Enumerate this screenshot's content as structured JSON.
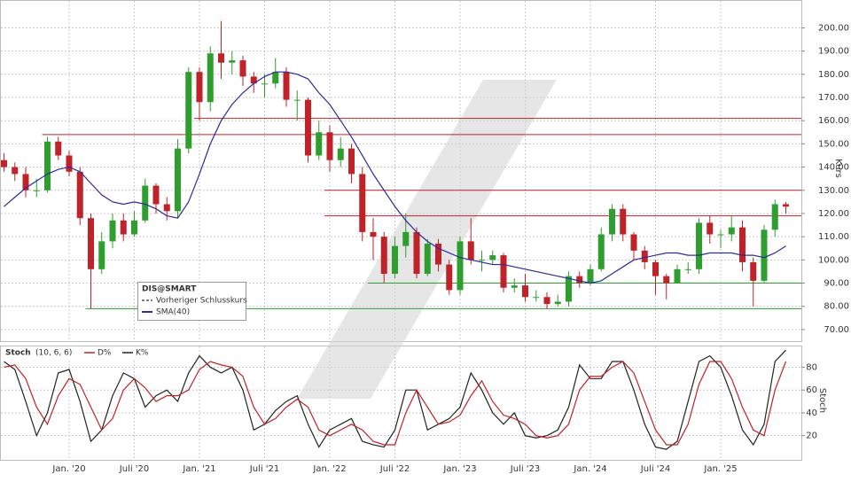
{
  "chart_data": [
    {
      "type": "candlestick",
      "name": "DIS@SMART",
      "categories": [
        null,
        null,
        null,
        null,
        null,
        null,
        "Jan. '20",
        null,
        null,
        null,
        null,
        null,
        "Juli '20",
        null,
        null,
        null,
        null,
        null,
        "Jan. '21",
        null,
        null,
        null,
        null,
        null,
        "Juli '21",
        null,
        null,
        null,
        null,
        null,
        "Jan. '22",
        null,
        null,
        null,
        null,
        null,
        "Juli '22",
        null,
        null,
        null,
        null,
        null,
        "Jan. '23",
        null,
        null,
        null,
        null,
        null,
        "Juli '23",
        null,
        null,
        null,
        null,
        null,
        "Jan. '24",
        null,
        null,
        null,
        null,
        null,
        "Juli '24",
        null,
        null,
        null,
        null,
        null,
        "Jan. '25",
        null,
        null,
        null,
        null,
        null,
        null
      ],
      "open": [
        143,
        140,
        137,
        130,
        130,
        151,
        145,
        138,
        118,
        96,
        108,
        117,
        111,
        117,
        132,
        124,
        121,
        148,
        181,
        168,
        189,
        185,
        186,
        179,
        176,
        176,
        181,
        169,
        169,
        145,
        155,
        143,
        148,
        137,
        112,
        110,
        94,
        106,
        112,
        94,
        107,
        98,
        87,
        108,
        100,
        100,
        102,
        88,
        89,
        84,
        84,
        81,
        82,
        93,
        90,
        96,
        111,
        122,
        111,
        104,
        99,
        93,
        90,
        96,
        96,
        116,
        111,
        111,
        114,
        99,
        91,
        113,
        124
      ],
      "high": [
        146,
        142,
        140,
        135,
        153,
        153,
        147,
        140,
        120,
        112,
        120,
        120,
        121,
        135,
        133,
        127,
        152,
        183,
        183,
        192,
        203,
        190,
        188,
        181,
        180,
        187,
        183,
        173,
        170,
        160,
        158,
        153,
        150,
        140,
        118,
        112,
        110,
        120,
        114,
        109,
        109,
        100,
        110,
        118,
        104,
        104,
        103,
        92,
        94,
        87,
        86,
        85,
        95,
        95,
        98,
        114,
        124,
        124,
        112,
        106,
        100,
        94,
        98,
        99,
        118,
        119,
        113,
        119,
        117,
        101,
        115,
        126,
        125
      ],
      "low": [
        138,
        134,
        127,
        127,
        129,
        143,
        136,
        115,
        79,
        94,
        105,
        108,
        110,
        116,
        120,
        117,
        118,
        146,
        160,
        164,
        178,
        180,
        175,
        172,
        170,
        174,
        166,
        160,
        142,
        143,
        138,
        140,
        133,
        108,
        100,
        90,
        92,
        101,
        92,
        93,
        95,
        85,
        85,
        98,
        95,
        98,
        86,
        86,
        82,
        82,
        79,
        80,
        80,
        88,
        89,
        95,
        108,
        108,
        100,
        96,
        85,
        83,
        90,
        94,
        94,
        107,
        105,
        108,
        95,
        80,
        90,
        110,
        120
      ],
      "close": [
        140,
        137,
        130,
        130,
        151,
        145,
        138,
        118,
        96,
        108,
        117,
        111,
        117,
        132,
        124,
        121,
        148,
        181,
        168,
        189,
        185,
        186,
        179,
        176,
        176,
        181,
        169,
        169,
        145,
        155,
        143,
        148,
        137,
        112,
        110,
        94,
        106,
        112,
        94,
        107,
        98,
        87,
        108,
        100,
        100,
        102,
        88,
        89,
        84,
        84,
        81,
        82,
        93,
        90,
        96,
        111,
        122,
        111,
        104,
        99,
        93,
        90,
        96,
        96,
        116,
        111,
        111,
        114,
        99,
        91,
        113,
        124,
        123
      ],
      "up_color": "#2e9e2e",
      "down_color": "#c0222a",
      "series": [
        {
          "name": "Vorheriger Schlusskurs",
          "color": "#555555",
          "dash": true
        },
        {
          "name": "SMA(40)",
          "color": "#2b2b9b",
          "values": [
            123,
            127,
            131,
            134,
            137,
            139,
            140,
            138,
            133,
            128,
            125,
            124,
            125,
            124,
            122,
            119,
            118,
            125,
            137,
            150,
            160,
            167,
            172,
            176,
            179,
            181,
            181,
            180,
            178,
            172,
            167,
            160,
            153,
            145,
            137,
            130,
            123,
            117,
            112,
            108,
            105,
            103,
            101,
            100,
            99,
            98,
            98,
            97,
            96,
            95,
            94,
            93,
            92,
            91,
            90,
            91,
            94,
            97,
            100,
            101,
            102,
            103,
            103,
            102,
            102,
            103,
            103,
            103,
            102,
            102,
            101,
            103,
            106
          ]
        }
      ],
      "hlines": [
        {
          "value": 161,
          "color": "#c0222a",
          "start": 18
        },
        {
          "value": 154,
          "color": "#c0222a",
          "start": 4
        },
        {
          "value": 130,
          "color": "#c0222a",
          "start": 30
        },
        {
          "value": 119,
          "color": "#c0222a",
          "start": 30
        },
        {
          "value": 90,
          "color": "#2e9e2e",
          "start": 34
        },
        {
          "value": 79,
          "color": "#2e9e2e",
          "start": 8
        }
      ],
      "ylabel": "Kurs",
      "ylim": [
        65,
        212
      ],
      "yticks": [
        {
          "value": 70,
          "label": "70.00"
        },
        {
          "value": 80,
          "label": "80.00"
        },
        {
          "value": 90,
          "label": "90.00"
        },
        {
          "value": 100,
          "label": "100.00"
        },
        {
          "value": 110,
          "label": "110.00"
        },
        {
          "value": 120,
          "label": "120.00"
        },
        {
          "value": 130,
          "label": "130.00"
        },
        {
          "value": 140,
          "label": "140.00"
        },
        {
          "value": 150,
          "label": "150.00"
        },
        {
          "value": 160,
          "label": "160.00"
        },
        {
          "value": 170,
          "label": "170.00"
        },
        {
          "value": 180,
          "label": "180.00"
        },
        {
          "value": 190,
          "label": "190.00"
        },
        {
          "value": 200,
          "label": "200.00"
        }
      ],
      "grid": true
    },
    {
      "type": "line",
      "title": "Stoch",
      "subtitle": "(10, 6, 6)",
      "ylabel": "Stoch",
      "series": [
        {
          "name": "D%",
          "color": "#c0222a",
          "values": [
            80,
            82,
            70,
            45,
            30,
            55,
            70,
            65,
            45,
            25,
            35,
            60,
            70,
            62,
            50,
            55,
            55,
            60,
            78,
            85,
            82,
            80,
            72,
            45,
            30,
            35,
            45,
            52,
            45,
            25,
            20,
            25,
            30,
            25,
            15,
            12,
            12,
            40,
            60,
            45,
            30,
            32,
            38,
            55,
            68,
            50,
            38,
            35,
            30,
            20,
            18,
            20,
            30,
            60,
            72,
            72,
            80,
            85,
            75,
            50,
            25,
            12,
            12,
            30,
            65,
            85,
            85,
            70,
            45,
            25,
            20,
            60,
            85
          ]
        },
        {
          "name": "K%",
          "color": "#222222",
          "values": [
            85,
            78,
            50,
            20,
            40,
            75,
            78,
            50,
            15,
            25,
            55,
            75,
            70,
            45,
            55,
            60,
            50,
            75,
            90,
            80,
            75,
            80,
            60,
            25,
            30,
            42,
            50,
            55,
            30,
            10,
            25,
            30,
            35,
            15,
            12,
            10,
            25,
            60,
            60,
            25,
            30,
            35,
            45,
            75,
            60,
            40,
            30,
            40,
            20,
            18,
            20,
            25,
            45,
            82,
            70,
            70,
            85,
            85,
            60,
            30,
            10,
            8,
            15,
            50,
            85,
            90,
            80,
            55,
            25,
            12,
            30,
            85,
            95
          ]
        }
      ],
      "ylim": [
        -2,
        99
      ],
      "yticks": [
        20,
        40,
        60,
        80
      ],
      "grid": true
    }
  ]
}
